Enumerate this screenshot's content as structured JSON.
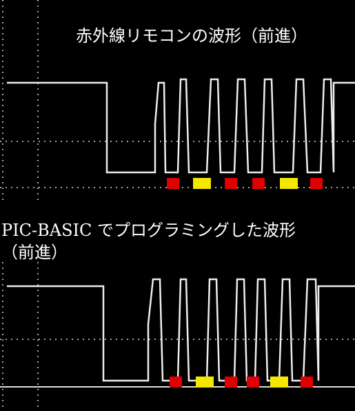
{
  "top": {
    "title": "赤外線リモコンの波形（前進）"
  },
  "bottom": {
    "title_line1": "PIC-BASIC でプログラミングした波形",
    "title_line2": "（前進）"
  }
}
